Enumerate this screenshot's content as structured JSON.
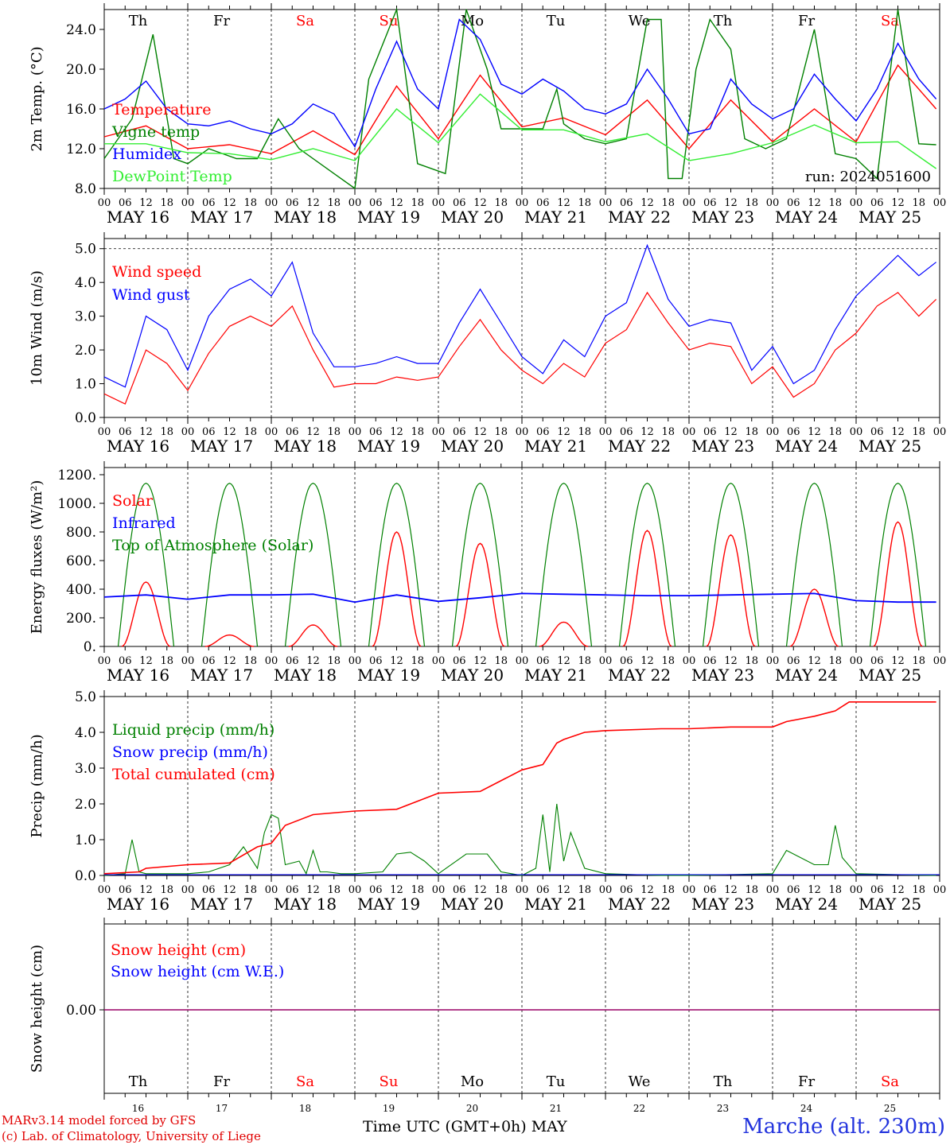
{
  "chart_data": [
    {
      "type": "line",
      "ylabel": "2m Temp. (°C)",
      "ylim": [
        8,
        26
      ],
      "yticks": [
        "8.0",
        "12.0",
        "16.0",
        "20.0",
        "24.0"
      ],
      "annotation": "run: 2024051600",
      "day_labels": [
        "Th",
        "Fr",
        "Sa",
        "Su",
        "Mo",
        "Tu",
        "We",
        "Th",
        "Fr",
        "Sa"
      ],
      "series": [
        {
          "name": "Temperature",
          "color": "#ff0000",
          "x": [
            0,
            12,
            24,
            36,
            48,
            60,
            72,
            84,
            96,
            108,
            120,
            132,
            144,
            156,
            168,
            180,
            192,
            204,
            216,
            228,
            239
          ],
          "values": [
            13.2,
            14.3,
            12.0,
            12.4,
            11.5,
            13.8,
            11.4,
            18.3,
            13.0,
            19.4,
            14.2,
            15.1,
            13.4,
            16.9,
            12.0,
            16.9,
            12.7,
            16.0,
            12.7,
            20.4,
            16.0
          ]
        },
        {
          "name": "Vigne temp",
          "color": "#008000",
          "x": [
            0,
            8,
            14,
            20,
            24,
            30,
            38,
            44,
            50,
            56,
            66,
            72,
            76,
            84,
            90,
            98,
            104,
            110,
            114,
            120,
            126,
            130,
            132,
            138,
            144,
            150,
            156,
            160,
            162,
            166,
            170,
            174,
            180,
            184,
            190,
            196,
            204,
            210,
            216,
            222,
            228,
            234,
            239
          ],
          "values": [
            11.0,
            15.0,
            23.5,
            11.0,
            10.5,
            12.0,
            11.0,
            11.0,
            15.0,
            12.0,
            9.5,
            8.0,
            19.0,
            28.0,
            10.5,
            9.5,
            28.0,
            20.0,
            14.0,
            14.0,
            14.0,
            18.0,
            14.5,
            13.0,
            12.5,
            13.0,
            25.0,
            25.0,
            9.0,
            9.0,
            20.0,
            25.0,
            22.0,
            13.0,
            12.0,
            13.0,
            24.0,
            11.5,
            11.0,
            9.0,
            26.0,
            12.5,
            12.4
          ]
        },
        {
          "name": "Humidex",
          "color": "#0000ff",
          "x": [
            0,
            6,
            12,
            18,
            24,
            30,
            36,
            42,
            48,
            54,
            60,
            66,
            72,
            78,
            84,
            90,
            96,
            102,
            108,
            114,
            120,
            126,
            132,
            138,
            144,
            150,
            156,
            162,
            168,
            174,
            180,
            186,
            192,
            198,
            204,
            210,
            216,
            222,
            228,
            234,
            239
          ],
          "values": [
            16.0,
            17.0,
            18.8,
            16.0,
            14.5,
            14.3,
            14.8,
            14.0,
            13.5,
            14.5,
            16.5,
            15.5,
            12.2,
            18.0,
            22.8,
            18.0,
            16.0,
            25.0,
            23.0,
            18.5,
            17.5,
            19.0,
            17.8,
            16.0,
            15.5,
            16.5,
            20.0,
            17.0,
            13.5,
            14.0,
            19.0,
            16.5,
            15.0,
            16.0,
            19.5,
            17.0,
            14.8,
            18.0,
            22.6,
            19.0,
            17.0
          ]
        },
        {
          "name": "DewPoint Temp",
          "color": "#33ee33",
          "x": [
            0,
            12,
            24,
            36,
            48,
            60,
            72,
            84,
            96,
            108,
            120,
            132,
            144,
            156,
            168,
            180,
            192,
            204,
            216,
            228,
            239
          ],
          "values": [
            12.5,
            12.5,
            11.6,
            11.5,
            10.9,
            12.0,
            10.8,
            16.0,
            12.6,
            17.5,
            13.9,
            13.9,
            12.7,
            13.5,
            10.8,
            11.5,
            12.6,
            14.4,
            12.6,
            12.7,
            10.0
          ]
        }
      ]
    },
    {
      "type": "line",
      "ylabel": "10m Wind (m/s)",
      "ylim": [
        0,
        5.3
      ],
      "yticks": [
        "0.0",
        "1.0",
        "2.0",
        "3.0",
        "4.0",
        "5.0"
      ],
      "series": [
        {
          "name": "Wind speed",
          "color": "#ff0000",
          "x": [
            0,
            6,
            12,
            18,
            24,
            30,
            36,
            42,
            48,
            54,
            60,
            66,
            72,
            78,
            84,
            90,
            96,
            102,
            108,
            114,
            120,
            126,
            132,
            138,
            144,
            150,
            156,
            162,
            168,
            174,
            180,
            186,
            192,
            198,
            204,
            210,
            216,
            222,
            228,
            234,
            239
          ],
          "values": [
            0.7,
            0.4,
            2.0,
            1.6,
            0.8,
            1.9,
            2.7,
            3.0,
            2.7,
            3.3,
            2.0,
            0.9,
            1.0,
            1.0,
            1.2,
            1.1,
            1.2,
            2.1,
            2.9,
            2.0,
            1.4,
            1.0,
            1.6,
            1.2,
            2.2,
            2.6,
            3.7,
            2.8,
            2.0,
            2.2,
            2.1,
            1.0,
            1.5,
            0.6,
            1.0,
            2.0,
            2.5,
            3.3,
            3.7,
            3.0,
            3.5
          ]
        },
        {
          "name": "Wind gust",
          "color": "#0000ff",
          "x": [
            0,
            6,
            12,
            18,
            24,
            30,
            36,
            42,
            48,
            54,
            60,
            66,
            72,
            78,
            84,
            90,
            96,
            102,
            108,
            114,
            120,
            126,
            132,
            138,
            144,
            150,
            156,
            162,
            168,
            174,
            180,
            186,
            192,
            198,
            204,
            210,
            216,
            222,
            228,
            234,
            239
          ],
          "values": [
            1.2,
            0.9,
            3.0,
            2.6,
            1.4,
            3.0,
            3.8,
            4.1,
            3.6,
            4.6,
            2.5,
            1.5,
            1.5,
            1.6,
            1.8,
            1.6,
            1.6,
            2.8,
            3.8,
            2.8,
            1.8,
            1.3,
            2.3,
            1.8,
            3.0,
            3.4,
            5.1,
            3.5,
            2.7,
            2.9,
            2.8,
            1.4,
            2.1,
            1.0,
            1.4,
            2.6,
            3.6,
            4.2,
            4.8,
            4.2,
            4.6
          ]
        }
      ]
    },
    {
      "type": "line",
      "ylabel": "Energy fluxes (W/m²)",
      "ylim": [
        0,
        1250
      ],
      "yticks": [
        "0.",
        "200.",
        "400.",
        "600.",
        "800.",
        "1000.",
        "1200."
      ],
      "series": [
        {
          "name": "Solar",
          "color": "#ff0000",
          "day_peaks": [
            450,
            80,
            150,
            800,
            720,
            170,
            810,
            780,
            400,
            870
          ]
        },
        {
          "name": "Infrared",
          "color": "#0000ff",
          "x": [
            0,
            12,
            24,
            36,
            48,
            60,
            72,
            84,
            96,
            108,
            120,
            132,
            144,
            156,
            168,
            180,
            192,
            204,
            216,
            228,
            239
          ],
          "values": [
            345,
            360,
            330,
            360,
            360,
            365,
            310,
            360,
            315,
            340,
            370,
            365,
            360,
            355,
            355,
            360,
            365,
            370,
            320,
            310,
            310
          ]
        },
        {
          "name": "Top of Atmosphere (Solar)",
          "color": "#008000",
          "day_peak": 1140
        }
      ]
    },
    {
      "type": "line",
      "ylabel": "Precip (mm/h)",
      "ylim": [
        0,
        5
      ],
      "yticks": [
        "0.0",
        "1.0",
        "2.0",
        "3.0",
        "4.0",
        "5.0"
      ],
      "series": [
        {
          "name": "Liquid precip (mm/h)",
          "color": "#008000",
          "x": [
            0,
            6,
            8,
            10,
            12,
            18,
            24,
            30,
            36,
            40,
            44,
            46,
            48,
            50,
            52,
            56,
            58,
            60,
            62,
            64,
            68,
            72,
            80,
            84,
            88,
            92,
            96,
            104,
            110,
            114,
            120,
            124,
            126,
            128,
            130,
            132,
            134,
            138,
            144,
            160,
            168,
            192,
            196,
            204,
            208,
            210,
            212,
            216,
            239
          ],
          "values": [
            0,
            0.05,
            1.0,
            0.1,
            0.05,
            0.05,
            0.05,
            0.1,
            0.3,
            0.8,
            0.2,
            1.2,
            1.7,
            1.6,
            0.3,
            0.4,
            0.05,
            0.7,
            0.1,
            0.1,
            0.05,
            0.05,
            0.1,
            0.6,
            0.65,
            0.4,
            0.05,
            0.6,
            0.6,
            0.1,
            0,
            0.2,
            1.7,
            0.1,
            2.0,
            0.4,
            1.2,
            0.2,
            0.05,
            0,
            0,
            0.05,
            0.7,
            0.3,
            0.3,
            1.4,
            0.5,
            0.05,
            0
          ]
        },
        {
          "name": "Snow precip (mm/h)",
          "color": "#0000ff",
          "values": [
            0
          ]
        },
        {
          "name": "Total cumulated (cm)",
          "color": "#ff0000",
          "x": [
            0,
            10,
            12,
            24,
            36,
            44,
            48,
            52,
            60,
            72,
            84,
            96,
            108,
            120,
            126,
            130,
            132,
            138,
            144,
            160,
            168,
            180,
            192,
            196,
            204,
            210,
            214,
            239
          ],
          "values": [
            0.05,
            0.1,
            0.2,
            0.3,
            0.35,
            0.8,
            0.9,
            1.4,
            1.7,
            1.8,
            1.85,
            2.3,
            2.35,
            2.95,
            3.1,
            3.7,
            3.8,
            4.0,
            4.05,
            4.1,
            4.1,
            4.15,
            4.15,
            4.3,
            4.45,
            4.6,
            4.85,
            4.85
          ]
        }
      ]
    },
    {
      "type": "line",
      "ylabel": "Snow height (cm)",
      "yticks": [
        "0.00"
      ],
      "day_labels": [
        "Th",
        "Fr",
        "Sa",
        "Su",
        "Mo",
        "Tu",
        "We",
        "Th",
        "Fr",
        "Sa"
      ],
      "day_numbers": [
        "16",
        "17",
        "18",
        "19",
        "20",
        "21",
        "22",
        "23",
        "24",
        "25"
      ],
      "series": [
        {
          "name": "Snow height (cm)",
          "color": "#ff0000",
          "values": [
            0
          ]
        },
        {
          "name": "Snow height (cm W.E.)",
          "color": "#0000ff",
          "values": [
            0
          ]
        }
      ]
    }
  ],
  "x_axis": {
    "hour_ticks": [
      "00",
      "06",
      "12",
      "18"
    ],
    "day_titles": [
      "MAY 16",
      "MAY 17",
      "MAY 18",
      "MAY 19",
      "MAY 20",
      "MAY 21",
      "MAY 22",
      "MAY 23",
      "MAY 24",
      "MAY 25"
    ]
  },
  "weekend_color": "#ff0000",
  "weekend_days": [
    2,
    3,
    9
  ],
  "footer": {
    "model": "MARv3.14 model forced by GFS",
    "copyright": "(c) Lab. of Climatology, University of Liege",
    "time_label": "Time UTC (GMT+0h) MAY",
    "station": "Marche (alt. 230m)"
  }
}
